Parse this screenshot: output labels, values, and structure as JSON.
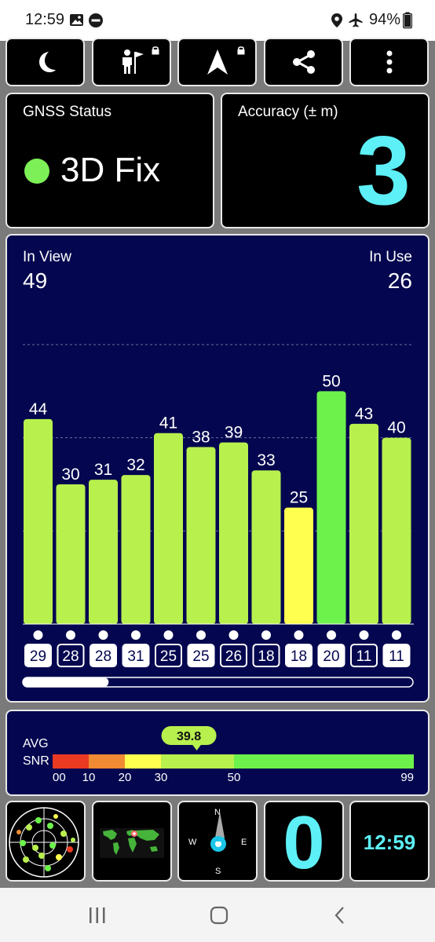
{
  "status_bar": {
    "time": "12:59",
    "battery": "94%",
    "icons": [
      "gallery-icon",
      "do-not-disturb-icon",
      "location-icon",
      "airplane-icon",
      "battery-icon"
    ]
  },
  "toolbar": {
    "buttons": [
      "night-mode-icon",
      "guide-icon",
      "navigate-icon",
      "share-icon",
      "more-icon"
    ]
  },
  "gnss": {
    "label": "GNSS Status",
    "status": "3D Fix",
    "status_color": "#7cf056"
  },
  "accuracy": {
    "label": "Accuracy (± m)",
    "value": "3",
    "value_color": "#5df0f6"
  },
  "satellites": {
    "in_view_label": "In View",
    "in_view": "49",
    "in_use_label": "In Use",
    "in_use": "26",
    "scroll_position": 0.22
  },
  "chart_data": {
    "type": "bar",
    "values": [
      44,
      30,
      31,
      32,
      41,
      38,
      39,
      33,
      25,
      50,
      43,
      40
    ],
    "categories": [
      "29",
      "28",
      "28",
      "31",
      "25",
      "25",
      "26",
      "18",
      "18",
      "20",
      "11",
      "11"
    ],
    "category_style": [
      "filled",
      "outlined",
      "filled",
      "filled",
      "outlined",
      "filled",
      "outlined",
      "outlined",
      "filled",
      "filled",
      "outlined",
      "filled"
    ],
    "colors": {
      "low": "#ffff4f",
      "mid": "#b8f04e",
      "high": "#6df24c"
    },
    "ylim": [
      0,
      60
    ],
    "grid": true
  },
  "snr": {
    "label_line1": "AVG",
    "label_line2": "SNR",
    "value": "39.8",
    "average": 39.8,
    "ticks": [
      "00",
      "10",
      "20",
      "30",
      "50",
      "99"
    ],
    "tick_values": [
      0,
      10,
      20,
      30,
      50,
      99
    ],
    "bands": [
      {
        "from": 0,
        "to": 10,
        "color": "#ea3a22"
      },
      {
        "from": 10,
        "to": 20,
        "color": "#f08a33"
      },
      {
        "from": 20,
        "to": 30,
        "color": "#ffff4f"
      },
      {
        "from": 30,
        "to": 50,
        "color": "#b8f04e"
      },
      {
        "from": 50,
        "to": 99,
        "color": "#6df24c"
      }
    ]
  },
  "bottom_tiles": {
    "sky_plot": "sky-plot-icon",
    "world_map": "world-map-icon",
    "compass": {
      "n": "N",
      "e": "E",
      "s": "S",
      "w": "W"
    },
    "speed": "0",
    "clock": "12:59"
  },
  "nav_bar": [
    "recent-apps-icon",
    "home-icon",
    "back-icon"
  ]
}
